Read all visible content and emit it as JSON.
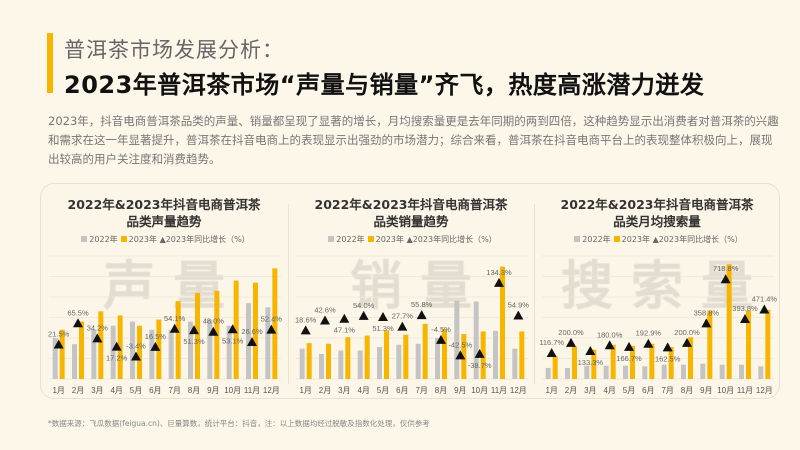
{
  "header": {
    "subtitle": "普洱茶市场发展分析：",
    "title": "2023年普洱茶市场“声量与销量”齐飞，热度高涨潜力迸发"
  },
  "paragraph": "2023年，抖音电商普洱茶品类的声量、销量都呈现了显著的增长，月均搜索量更是去年同期的两到四倍，这种趋势显示出消费者对普洱茶的兴趣和需求在这一年显著提升，普洱茶在抖音电商上的表现显示出强劲的市场潜力；综合来看，普洱茶在抖音电商平台上的表现整体积极向上，展现出较高的用户关注度和消费趋势。",
  "footer": "*数据来源：飞瓜数据(feigua.cn)、巨量算数，统计平台：抖音，注：以上数据均经过脱敏及指数化处理，仅供参考",
  "colors": {
    "accent": "#f7b500",
    "y2022": "#c4c4c4",
    "y2023": "#f7b500",
    "growth": "#111111"
  },
  "chart_data": [
    {
      "type": "bar",
      "title_line1": "2022年&2023年抖音电商普洱茶",
      "title_line2": "品类声量趋势",
      "watermark": "声量",
      "legend": [
        "2022年",
        "2023年",
        "2023年同比增长（%）"
      ],
      "categories": [
        "1月",
        "2月",
        "3月",
        "4月",
        "5月",
        "6月",
        "7月",
        "8月",
        "9月",
        "10月",
        "11月",
        "12月"
      ],
      "series": [
        {
          "name": "2022年",
          "values": [
            20,
            17,
            24,
            26,
            28,
            24,
            24,
            28,
            29,
            26,
            37,
            35
          ]
        },
        {
          "name": "2023年",
          "values": [
            24,
            28,
            33,
            31,
            26,
            29,
            38,
            42,
            43,
            48,
            47,
            54
          ]
        },
        {
          "name": "2023年同比增长（%）",
          "marker": "triangle",
          "axis": "secondary",
          "values": [
            21.5,
            65.5,
            34.2,
            17.2,
            -3.4,
            16.5,
            54.1,
            51.3,
            48.0,
            53.1,
            26.6,
            52.4
          ],
          "labels": [
            "21.5%",
            "65.5%",
            "34.2%",
            "17.2%",
            "-3.4%",
            "16.5%",
            "54.1%",
            "51.3%",
            "48.0%",
            "53.1%",
            "26.6%",
            "52.4%"
          ]
        }
      ],
      "ylim": [
        0,
        60
      ],
      "y2lim": [
        -50,
        205
      ],
      "grid": true,
      "legend_position": "top"
    },
    {
      "type": "bar",
      "title_line1": "2022年&2023年抖音电商普洱茶",
      "title_line2": "品类销量趋势",
      "watermark": "销量",
      "legend": [
        "2022年",
        "2023年",
        "2023年同比增长（%）"
      ],
      "categories": [
        "1月",
        "2月",
        "3月",
        "4月",
        "5月",
        "6月",
        "7月",
        "8月",
        "9月",
        "10月",
        "11月",
        "12月"
      ],
      "series": [
        {
          "name": "2022年",
          "values": [
            14.8,
            12.2,
            13.9,
            13.9,
            15.6,
            16.7,
            17.2,
            20,
            38.1,
            37.8,
            23.5,
            14.8
          ]
        },
        {
          "name": "2023年",
          "values": [
            17.5,
            17.2,
            20.4,
            21.2,
            23.7,
            21.6,
            26.9,
            24.3,
            21.9,
            23.2,
            54.8,
            23.2
          ]
        },
        {
          "name": "2023年同比增长（%）",
          "marker": "triangle",
          "axis": "secondary",
          "values": [
            18.6,
            42.6,
            47.1,
            54.0,
            51.3,
            27.7,
            55.8,
            -4.5,
            -42.5,
            -38.7,
            134.3,
            54.9
          ],
          "labels": [
            "18.6%",
            "42.6%",
            "47.1%",
            "54.0%",
            "51.3%",
            "27.7%",
            "55.8%",
            "-4.5%",
            "-42.5%",
            "-38.7%",
            "134.3%",
            "54.9%"
          ]
        }
      ],
      "ylim": [
        0,
        60
      ],
      "y2lim": [
        -100,
        200
      ],
      "grid": true,
      "legend_position": "top"
    },
    {
      "type": "bar",
      "title_line1": "2022年&2023年抖音电商普洱茶",
      "title_line2": "品类月均搜索量",
      "watermark": "搜索量",
      "legend": [
        "2022年",
        "2023年",
        "2023年同比增长（%）"
      ],
      "categories": [
        "1月",
        "2月",
        "3月",
        "4月",
        "5月",
        "6月",
        "7月",
        "8月",
        "9月",
        "10月",
        "11月",
        "12月"
      ],
      "series": [
        {
          "name": "2022年",
          "values": [
            5.4,
            5.4,
            6.5,
            6.5,
            6.5,
            6.2,
            7,
            7,
            7.5,
            7,
            7,
            6.2
          ]
        },
        {
          "name": "2023年",
          "values": [
            11,
            15.9,
            14.3,
            16.7,
            16.2,
            17.2,
            15.6,
            20.4,
            33.4,
            56,
            33.4,
            33.7
          ]
        },
        {
          "name": "2023年同比增长（%）",
          "marker": "triangle",
          "axis": "secondary",
          "values": [
            116.7,
            200.0,
            133.3,
            180.0,
            166.7,
            192.9,
            162.5,
            200.0,
            358.8,
            718.8,
            393.8,
            471.4
          ],
          "labels": [
            "116.7%",
            "200.0%",
            "133.3%",
            "180.0%",
            "166.7%",
            "192.9%",
            "162.5%",
            "200.0%",
            "358.8%",
            "718.8%",
            "393.8%",
            "471.4%"
          ]
        }
      ],
      "ylim": [
        0,
        60
      ],
      "y2lim": [
        -95,
        908
      ],
      "grid": true,
      "legend_position": "top"
    }
  ]
}
